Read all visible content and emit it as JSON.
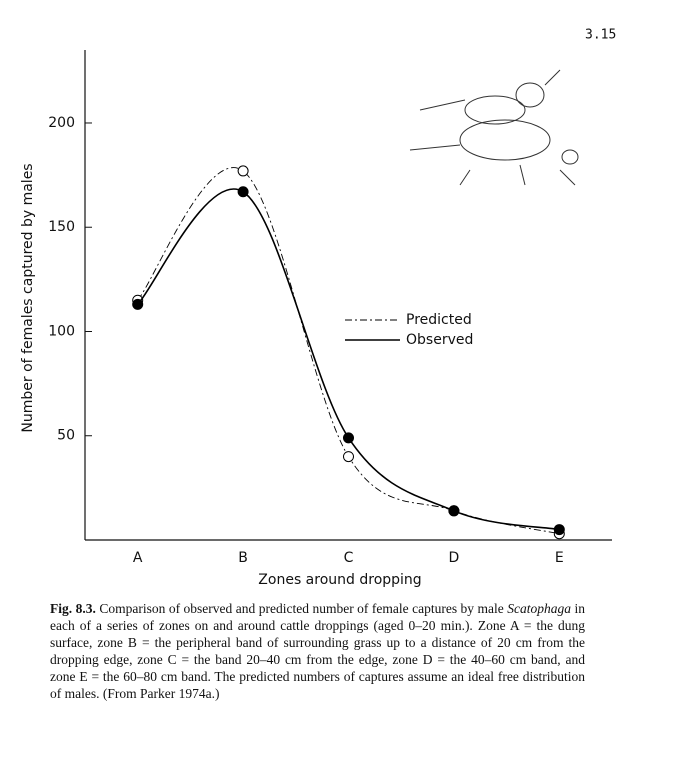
{
  "page_number": "3.15",
  "chart_data": {
    "type": "line",
    "x_label": "Zones around dropping",
    "y_label": "Number of females captured by males",
    "categories": [
      "A",
      "B",
      "C",
      "D",
      "E"
    ],
    "series": [
      {
        "name": "Predicted",
        "color": "#000000",
        "dash": "dash-dot",
        "marker": "open",
        "values": [
          115,
          177,
          40,
          14,
          3
        ]
      },
      {
        "name": "Observed",
        "color": "#000000",
        "dash": "solid",
        "marker": "filled",
        "values": [
          113,
          167,
          49,
          14,
          5
        ]
      }
    ],
    "ylim": [
      0,
      235
    ],
    "yticks": [
      50,
      100,
      150,
      200
    ],
    "grid": false,
    "legend": "center-right"
  },
  "caption": {
    "label": "Fig. 8.3.",
    "text_before": "Comparison of observed and predicted number of female captures by male",
    "italic": "Scatophaga",
    "text_after": "in each of a series of zones on and around cattle droppings (aged 0–20 min.). Zone A = the dung surface, zone B = the peripheral band of surrounding grass up to a distance of 20 cm from the dropping edge, zone C = the band 20–40 cm from the edge, zone D = the 40–60 cm band, and zone E = the 60–80 cm band. The predicted numbers of captures assume an ideal free distribution of males. (From Parker 1974a.)"
  }
}
